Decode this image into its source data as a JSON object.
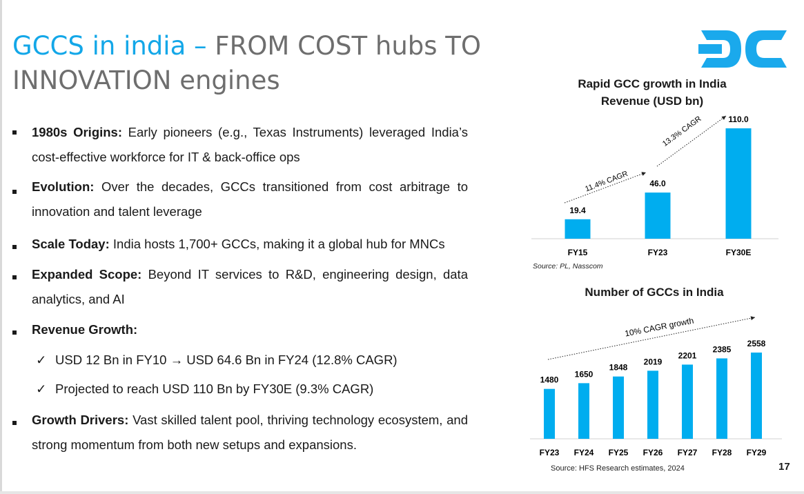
{
  "slide": {
    "title_accent": "GCCS in india",
    "title_dash": "–",
    "title_rest": "FROM COST hubs TO INNOVATION engines",
    "logo_text": "DC",
    "page_number": "17"
  },
  "bullets": [
    {
      "bold": "1980s Origins:",
      "text": " Early pioneers (e.g., Texas Instruments) leveraged India’s cost-effective workforce for IT & back-office ops"
    },
    {
      "bold": "Evolution:",
      "text": " Over the decades, GCCs transitioned from cost arbitrage to innovation and talent leverage"
    },
    {
      "bold": "Scale Today:",
      "text": " India hosts 1,700+ GCCs, making it a global hub for MNCs"
    },
    {
      "bold": "Expanded Scope:",
      "text": " Beyond IT services to R&D, engineering design, data analytics, and AI"
    },
    {
      "bold": "Revenue Growth:",
      "text": ""
    },
    {
      "bold": "Growth Drivers:",
      "text": " Vast skilled talent pool, thriving technology ecosystem, and strong momentum from both new setups and expansions."
    }
  ],
  "sub_bullets": [
    {
      "tick": "✓",
      "text": "USD 12 Bn in FY10 → USD 64.6 Bn in FY24 (12.8% CAGR)"
    },
    {
      "tick": "✓",
      "text": "Projected to reach USD 110 Bn by FY30E (9.3% CAGR)"
    }
  ],
  "chart_data": [
    {
      "type": "bar",
      "title_line1": "Rapid GCC growth in India",
      "title_line2": "Revenue (USD bn)",
      "categories": [
        "FY15",
        "FY23",
        "FY30E"
      ],
      "values": [
        19.4,
        46.0,
        110.0
      ],
      "value_labels": [
        "19.4",
        "46.0",
        "110.0"
      ],
      "ylim": [
        0,
        110
      ],
      "annotations": [
        "11.4% CAGR",
        "13.3% CAGR"
      ],
      "source": "Source: PL, Nasscom",
      "color": "#00adef"
    },
    {
      "type": "bar",
      "title": "Number of GCCs in India",
      "categories": [
        "FY23",
        "FY24",
        "FY25",
        "FY26",
        "FY27",
        "FY28",
        "FY29"
      ],
      "values": [
        1480,
        1650,
        1848,
        2019,
        2201,
        2385,
        2558
      ],
      "value_labels": [
        "1480",
        "1650",
        "1848",
        "2019",
        "2201",
        "2385",
        "2558"
      ],
      "ylim": [
        0,
        2558
      ],
      "annotations": [
        "10% CAGR growth"
      ],
      "source": "Source: HFS Research estimates, 2024",
      "color": "#00adef"
    }
  ],
  "colors": {
    "accent": "#13a7e8",
    "bar": "#00adef",
    "title_gray": "#6e6e6e"
  }
}
